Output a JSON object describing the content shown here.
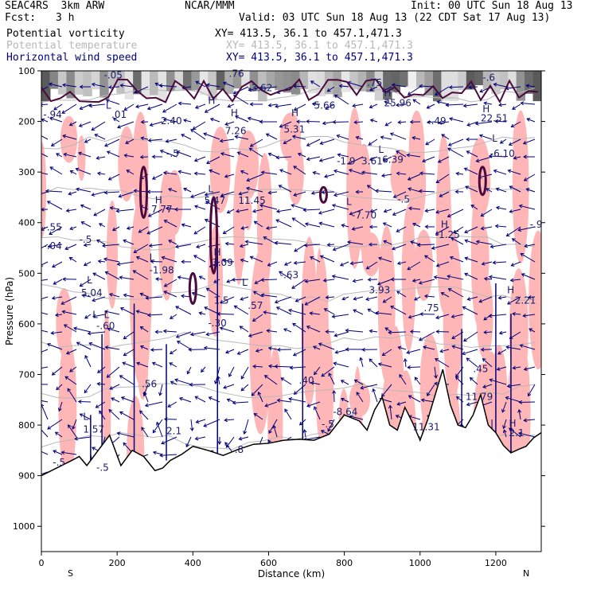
{
  "header": {
    "model": "SEAC4RS  3km ARW",
    "org": "NCAR/MMM",
    "init": "Init: 00 UTC Sun 18 Aug 13",
    "fcst_label": "Fcst:",
    "fcst_value": "3 h",
    "valid": "Valid: 03 UTC Sun 18 Aug 13 (22 CDT Sat 17 Aug 13)"
  },
  "legend": [
    {
      "name": "Potential vorticity",
      "xy": "XY= 413.5, 36.1 to 457.1,471.3",
      "color": "#000000"
    },
    {
      "name": "Potential temperature",
      "xy": "XY= 413.5, 36.1 to 457.1,471.3",
      "color": "#b8b8b8"
    },
    {
      "name": "Horizontal wind speed",
      "xy": "XY= 413.5, 36.1 to 457.1,471.3",
      "color": "#00007a"
    }
  ],
  "colors": {
    "wind": "#00007a",
    "pv_positive_fill": "#ffb6b6",
    "pv_contour": "#4a0a3e",
    "theta": "#b8b8b8",
    "terrain": "#000000"
  },
  "chart_data": {
    "type": "cross-section",
    "xlabel": "Distance (km)",
    "ylabel": "Pressure (hPa)",
    "xlim": [
      0,
      1320
    ],
    "ylim": [
      1050,
      100
    ],
    "x_ticks": [
      0,
      200,
      400,
      600,
      800,
      1000,
      1200
    ],
    "y_ticks": [
      100,
      200,
      300,
      400,
      500,
      600,
      700,
      800,
      900,
      1000
    ],
    "x_end_labels": {
      "left": "S",
      "right": "N"
    },
    "terrain": {
      "x": [
        0,
        40,
        80,
        100,
        120,
        150,
        180,
        210,
        240,
        270,
        300,
        320,
        340,
        370,
        400,
        440,
        480,
        520,
        560,
        600,
        640,
        680,
        720,
        760,
        800,
        840,
        860,
        880,
        900,
        920,
        940,
        960,
        980,
        1000,
        1020,
        1040,
        1060,
        1080,
        1100,
        1120,
        1140,
        1160,
        1180,
        1200,
        1220,
        1240,
        1260,
        1280,
        1300,
        1320
      ],
      "y": [
        900,
        885,
        870,
        862,
        880,
        850,
        820,
        880,
        850,
        862,
        890,
        885,
        870,
        858,
        842,
        850,
        860,
        848,
        838,
        836,
        830,
        828,
        830,
        818,
        780,
        792,
        810,
        770,
        745,
        800,
        810,
        765,
        795,
        830,
        790,
        740,
        690,
        760,
        800,
        805,
        780,
        740,
        800,
        815,
        840,
        855,
        848,
        842,
        825,
        815
      ]
    },
    "annotations": [
      {
        "text": "L",
        "x": 170,
        "y": 175
      },
      {
        "text": ".01",
        "x": 185,
        "y": 193
      },
      {
        "text": "-.94",
        "x": 5,
        "y": 193
      },
      {
        "text": "-.05",
        "x": 165,
        "y": 115
      },
      {
        "text": "H",
        "x": 440,
        "y": 165
      },
      {
        "text": "H",
        "x": 500,
        "y": 190
      },
      {
        "text": "7.26",
        "x": 485,
        "y": 225
      },
      {
        "text": "H",
        "x": 660,
        "y": 190
      },
      {
        "text": "5.31",
        "x": 640,
        "y": 222
      },
      {
        "text": "5.66",
        "x": 720,
        "y": 175
      },
      {
        "text": "25.96",
        "x": 905,
        "y": 170
      },
      {
        "text": "H",
        "x": 905,
        "y": 150
      },
      {
        "text": "-.49",
        "x": 1020,
        "y": 205
      },
      {
        "text": "H",
        "x": 1165,
        "y": 182
      },
      {
        "text": "22.51",
        "x": 1160,
        "y": 200
      },
      {
        "text": "L",
        "x": 1190,
        "y": 240
      },
      {
        "text": "-6.10",
        "x": 1185,
        "y": 270
      },
      {
        "text": "-3.62",
        "x": 545,
        "y": 140
      },
      {
        "text": ".75",
        "x": 860,
        "y": 130
      },
      {
        "text": "-.6",
        "x": 1165,
        "y": 120
      },
      {
        "text": ".76",
        "x": 495,
        "y": 112
      },
      {
        "text": "2.40",
        "x": 315,
        "y": 205
      },
      {
        "text": "-.5",
        "x": 330,
        "y": 270
      },
      {
        "text": "H",
        "x": 300,
        "y": 362
      },
      {
        "text": "7.77",
        "x": 290,
        "y": 380
      },
      {
        "text": "L",
        "x": 440,
        "y": 340
      },
      {
        "text": "5.47",
        "x": 430,
        "y": 363
      },
      {
        "text": "11.45",
        "x": 520,
        "y": 363
      },
      {
        "text": "-1.9",
        "x": 780,
        "y": 285
      },
      {
        "text": "3.61",
        "x": 845,
        "y": 285
      },
      {
        "text": "L",
        "x": 890,
        "y": 262
      },
      {
        "text": "6.39",
        "x": 900,
        "y": 282
      },
      {
        "text": "-.5",
        "x": 940,
        "y": 360
      },
      {
        "text": "L",
        "x": 805,
        "y": 365
      },
      {
        "text": "-7.70",
        "x": 820,
        "y": 392
      },
      {
        "text": "H",
        "x": 1055,
        "y": 410
      },
      {
        "text": "-1.25",
        "x": 1040,
        "y": 430
      },
      {
        "text": "-.9",
        "x": 1290,
        "y": 410
      },
      {
        "text": "L",
        "x": 285,
        "y": 475
      },
      {
        "text": "-1.98",
        "x": 285,
        "y": 500
      },
      {
        "text": "H",
        "x": 455,
        "y": 465
      },
      {
        "text": "3.09",
        "x": 450,
        "y": 485
      },
      {
        "text": "-.63",
        "x": 630,
        "y": 510
      },
      {
        "text": "-.55",
        "x": 5,
        "y": 415
      },
      {
        "text": "-.04",
        "x": 5,
        "y": 452
      },
      {
        "text": "-.5",
        "x": 100,
        "y": 440
      },
      {
        "text": "5.04",
        "x": 105,
        "y": 545
      },
      {
        "text": "L",
        "x": 120,
        "y": 520
      },
      {
        "text": "L",
        "x": 135,
        "y": 588
      },
      {
        "text": "L",
        "x": 165,
        "y": 588
      },
      {
        "text": "-.60",
        "x": 145,
        "y": 610
      },
      {
        "text": "1.5",
        "x": 455,
        "y": 560
      },
      {
        "text": ".57",
        "x": 545,
        "y": 570
      },
      {
        "text": "L",
        "x": 530,
        "y": 525
      },
      {
        "text": "-.30",
        "x": 440,
        "y": 605
      },
      {
        "text": "3.93",
        "x": 865,
        "y": 540
      },
      {
        "text": ".75",
        "x": 1010,
        "y": 575
      },
      {
        "text": "H",
        "x": 1230,
        "y": 540
      },
      {
        "text": "2.21",
        "x": 1250,
        "y": 560
      },
      {
        "text": ".56",
        "x": 265,
        "y": 725
      },
      {
        "text": ".40",
        "x": 680,
        "y": 718
      },
      {
        "text": ".45",
        "x": 1140,
        "y": 695
      },
      {
        "text": "11.79",
        "x": 1120,
        "y": 750
      },
      {
        "text": "-8.64",
        "x": 770,
        "y": 780
      },
      {
        "text": "-.5",
        "x": 740,
        "y": 805
      },
      {
        "text": "L",
        "x": 110,
        "y": 790
      },
      {
        "text": "1.57",
        "x": 110,
        "y": 815
      },
      {
        "text": "2.1",
        "x": 330,
        "y": 818
      },
      {
        "text": "11.31",
        "x": 980,
        "y": 810
      },
      {
        "text": "H",
        "x": 1235,
        "y": 803
      },
      {
        "text": "2.1",
        "x": 1235,
        "y": 822
      },
      {
        "text": "-.5",
        "x": 30,
        "y": 880
      },
      {
        "text": "-.5",
        "x": 145,
        "y": 890
      },
      {
        "text": ".8",
        "x": 510,
        "y": 855
      }
    ]
  }
}
